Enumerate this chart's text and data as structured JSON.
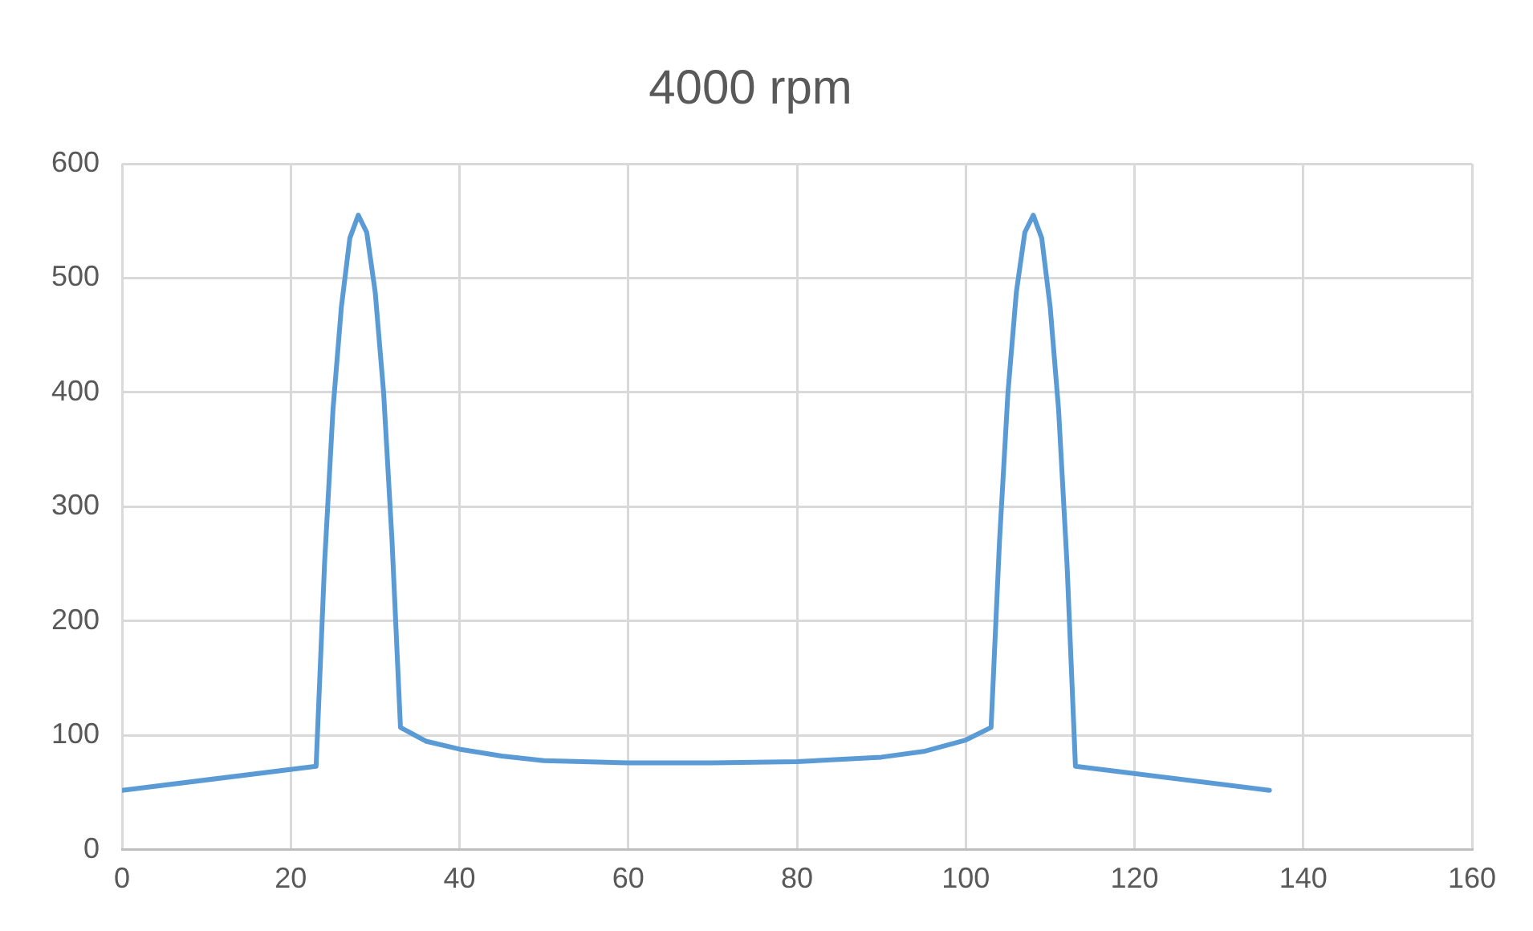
{
  "chart_data": {
    "type": "line",
    "title": "4000 rpm",
    "x": [
      0,
      23,
      24,
      25,
      26,
      27,
      28,
      29,
      30,
      31,
      32,
      33,
      36,
      40,
      45,
      50,
      60,
      70,
      80,
      90,
      95,
      100,
      103,
      104,
      105,
      106,
      107,
      108,
      109,
      110,
      111,
      112,
      113,
      136
    ],
    "series": [
      {
        "color": "#5b9bd5",
        "values": [
          52,
          73,
          250,
          385,
          475,
          535,
          555,
          540,
          488,
          400,
          270,
          107,
          95,
          88,
          82,
          78,
          76,
          76,
          77,
          81,
          86,
          96,
          107,
          270,
          400,
          488,
          540,
          555,
          535,
          475,
          385,
          250,
          73,
          52
        ]
      }
    ],
    "xlim": [
      0,
      160
    ],
    "xticks": [
      0,
      20,
      40,
      60,
      80,
      100,
      120,
      140,
      160
    ],
    "ylim": [
      0,
      600
    ],
    "yticks": [
      0,
      100,
      200,
      300,
      400,
      500,
      600
    ],
    "grid": true,
    "legend": false,
    "marker": "none",
    "line_style": "solid"
  }
}
